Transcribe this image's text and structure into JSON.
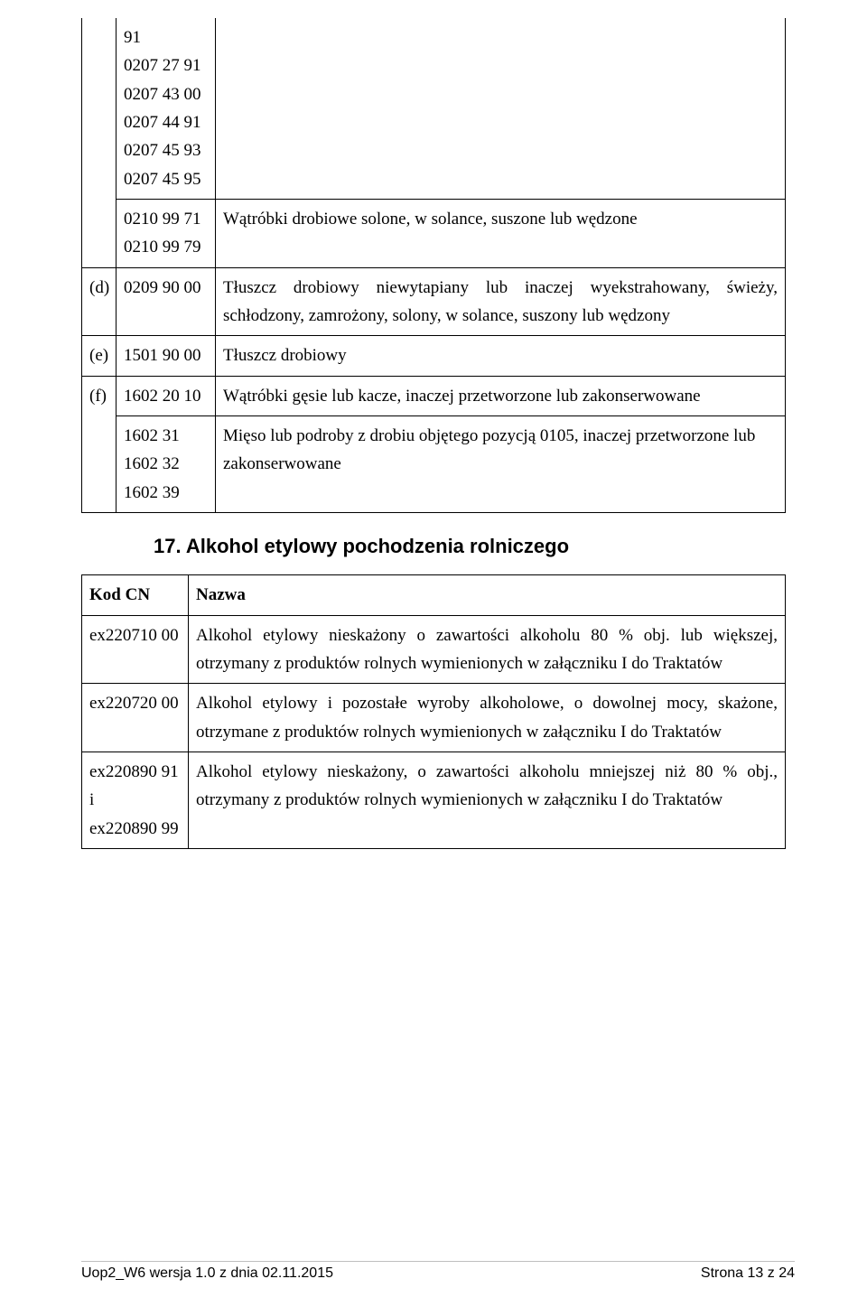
{
  "table1": {
    "row1_codes": [
      "91",
      "0207 27 91",
      "0207 43 00",
      "0207 44 91",
      "0207 45 93",
      "0207 45 95"
    ],
    "row2_codes": [
      "0210 99 71",
      "0210 99 79"
    ],
    "row2_desc": "Wątróbki drobiowe solone, w solance, suszone lub wędzone",
    "row_d_letter": "(d)",
    "row_d_code": "0209 90 00",
    "row_d_desc": "Tłuszcz drobiowy niewytapiany lub inaczej wyekstrahowany, świeży, schłodzony, zamrożony, solony, w solance, suszony lub wędzony",
    "row_e_letter": "(e)",
    "row_e_code": "1501 90 00",
    "row_e_desc": "Tłuszcz drobiowy",
    "row_f_letter": "(f)",
    "row_f1_code": "1602 20 10",
    "row_f1_desc": "Wątróbki gęsie lub kacze, inaczej przetworzone lub zakonserwowane",
    "row_f2_codes": [
      "1602 31",
      "1602 32",
      "1602 39"
    ],
    "row_f2_desc": "Mięso lub podroby z drobiu objętego pozycją 0105, inaczej przetworzone lub zakonserwowane"
  },
  "section_title": "17. Alkohol etylowy pochodzenia rolniczego",
  "table2": {
    "head_cn": "Kod CN",
    "head_name": "Nazwa",
    "r1_code": "ex220710 00",
    "r1_desc": "Alkohol etylowy nieskażony o zawartości alkoholu 80 % obj. lub większej, otrzymany z produktów rolnych wymienionych w załączniku I do Traktatów",
    "r2_code": "ex220720 00",
    "r2_desc": "Alkohol etylowy i pozostałe wyroby alkoholowe, o dowolnej mocy, skażone, otrzymane z produktów rolnych wymienionych w załączniku I do Traktatów",
    "r3_code_lines": [
      "ex220890 91",
      "i",
      "ex220890 99"
    ],
    "r3_desc": "Alkohol etylowy nieskażony, o zawartości alkoholu mniejszej niż 80 % obj., otrzymany z produktów rolnych wymienionych w załączniku I do Traktatów"
  },
  "footer_left": "Uop2_W6 wersja 1.0  z dnia 02.11.2015",
  "footer_right": "Strona 13 z 24"
}
